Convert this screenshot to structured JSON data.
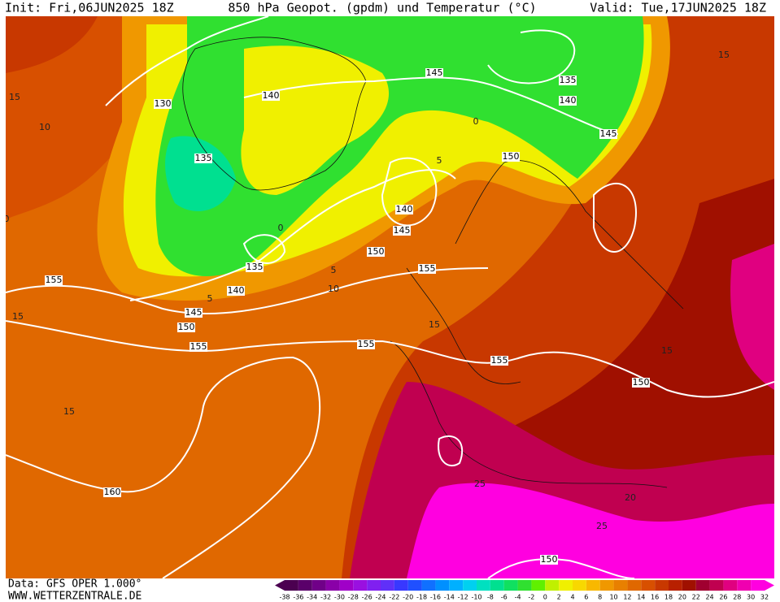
{
  "header": {
    "init": "Init: Fri,06JUN2025 18Z",
    "title": "850 hPa Geopot. (gpdm) und Temperatur (°C)",
    "valid": "Valid: Tue,17JUN2025 18Z"
  },
  "footer": {
    "data_source": "Data: GFS OPER 1.000°",
    "website": "WWW.WETTERZENTRALE.DE"
  },
  "map": {
    "geopotential_labels": [
      "130",
      "140",
      "135",
      "145",
      "135",
      "140",
      "145",
      "150",
      "140",
      "145",
      "150",
      "155",
      "135",
      "140",
      "145",
      "150",
      "155",
      "155",
      "155",
      "155",
      "150",
      "160",
      "150"
    ],
    "temperature_labels": [
      "15",
      "10",
      "15",
      "5",
      "0",
      "0",
      "5",
      "10",
      "5",
      "15",
      "15",
      "15",
      "25",
      "20",
      "25",
      "0",
      "15"
    ]
  },
  "colorbar": {
    "ticks": [
      -38,
      -36,
      -34,
      -32,
      -30,
      -28,
      -26,
      -24,
      -22,
      -20,
      -18,
      -16,
      -14,
      -12,
      -10,
      -8,
      -6,
      -4,
      -2,
      0,
      2,
      4,
      6,
      8,
      10,
      12,
      14,
      16,
      18,
      20,
      22,
      24,
      26,
      28,
      30,
      32
    ],
    "colors": [
      "#4b0050",
      "#5a006a",
      "#700088",
      "#8a00a8",
      "#a000c8",
      "#9a10e0",
      "#8020f0",
      "#6030f8",
      "#3838ff",
      "#2050ff",
      "#1070ff",
      "#0090ff",
      "#00b0ff",
      "#00d0f0",
      "#00e0c0",
      "#00e090",
      "#10e060",
      "#30e030",
      "#60f000",
      "#c0f000",
      "#f0f000",
      "#f8d800",
      "#f8b800",
      "#f09800",
      "#e88000",
      "#e06800",
      "#d85000",
      "#c83800",
      "#b82000",
      "#a01000",
      "#a00030",
      "#c00050",
      "#e00080",
      "#f000b0",
      "#ff00e0"
    ]
  }
}
